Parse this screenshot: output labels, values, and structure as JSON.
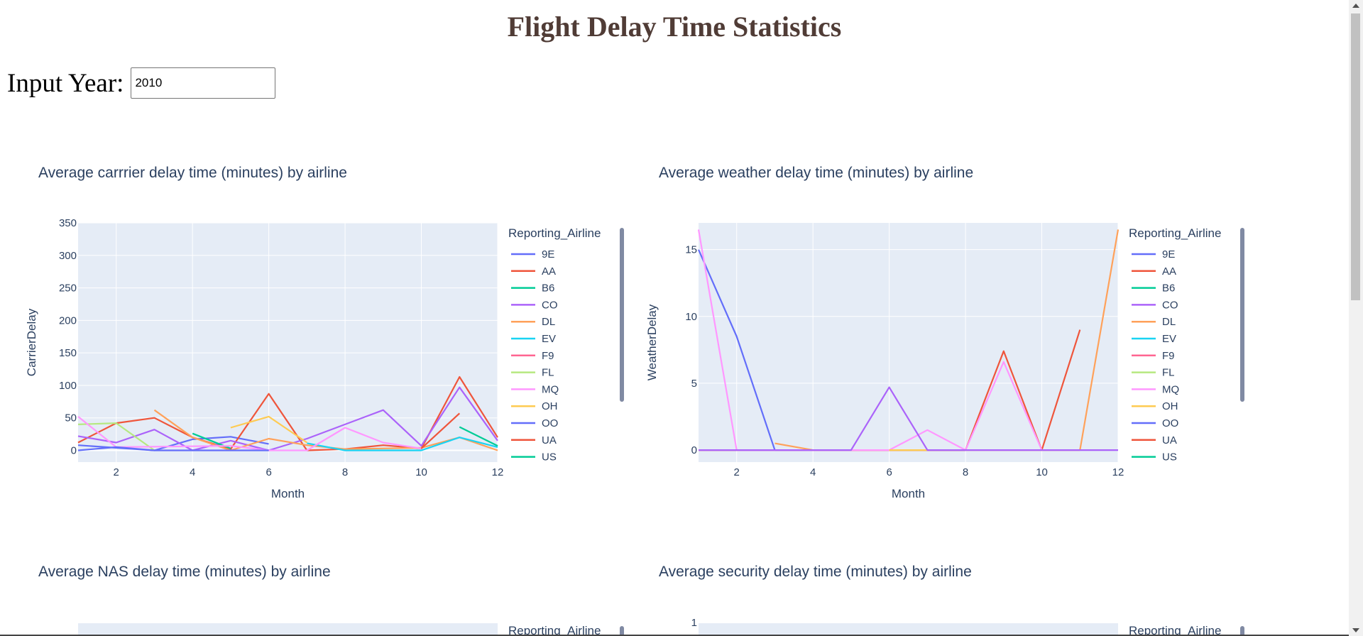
{
  "page": {
    "title": "Flight Delay Time Statistics",
    "year_label": "Input Year:",
    "year_value": "2010"
  },
  "legend_title": "Reporting_Airline",
  "legend_items": [
    {
      "name": "9E",
      "color": "#636efa"
    },
    {
      "name": "AA",
      "color": "#ef553b"
    },
    {
      "name": "B6",
      "color": "#00cc96"
    },
    {
      "name": "CO",
      "color": "#ab63fa"
    },
    {
      "name": "DL",
      "color": "#ffa15a"
    },
    {
      "name": "EV",
      "color": "#19d3f3"
    },
    {
      "name": "F9",
      "color": "#ff6692"
    },
    {
      "name": "FL",
      "color": "#b6e880"
    },
    {
      "name": "MQ",
      "color": "#ff97ff"
    },
    {
      "name": "OH",
      "color": "#fecb52"
    },
    {
      "name": "OO",
      "color": "#636efa"
    },
    {
      "name": "UA",
      "color": "#ef553b"
    },
    {
      "name": "US",
      "color": "#00cc96"
    }
  ],
  "chart_data": [
    {
      "type": "line",
      "title": "Average carrrier delay time (minutes) by airline",
      "xlabel": "Month",
      "ylabel": "CarrierDelay",
      "xlim": [
        1,
        12
      ],
      "ylim": [
        -18,
        350
      ],
      "x_ticks": [
        2,
        4,
        6,
        8,
        10,
        12
      ],
      "y_ticks": [
        0,
        50,
        100,
        150,
        200,
        250,
        300,
        350
      ],
      "series": [
        {
          "name": "9E",
          "x": [
            1,
            2,
            3,
            4,
            5,
            6
          ],
          "y": [
            8,
            4,
            0,
            17,
            21,
            10
          ]
        },
        {
          "name": "AA",
          "x": [
            1,
            2,
            3,
            4,
            5,
            6,
            7,
            8,
            9,
            10,
            11,
            12
          ],
          "y": [
            12,
            42,
            50,
            20,
            2,
            87,
            0,
            2,
            8,
            3,
            113,
            20
          ]
        },
        {
          "name": "CO",
          "x": [
            1,
            2,
            3,
            4,
            5,
            6,
            7,
            9,
            10,
            11,
            12
          ],
          "y": [
            22,
            12,
            32,
            0,
            15,
            0,
            18,
            62,
            7,
            97,
            15
          ]
        },
        {
          "name": "DL",
          "x": [
            3,
            4,
            5,
            6,
            7,
            8,
            10,
            11,
            12
          ],
          "y": [
            62,
            20,
            0,
            18,
            8,
            2,
            4,
            20,
            0
          ]
        },
        {
          "name": "B6",
          "x": [
            4,
            5
          ],
          "y": [
            26,
            3
          ]
        },
        {
          "name": "EV",
          "x": [
            7,
            8,
            10,
            11,
            12
          ],
          "y": [
            11,
            0,
            0,
            20,
            5
          ]
        },
        {
          "name": "FL",
          "x": [
            1,
            2,
            3
          ],
          "y": [
            40,
            42,
            0
          ]
        },
        {
          "name": "MQ",
          "x": [
            1,
            2,
            5,
            6,
            7,
            8,
            9,
            10
          ],
          "y": [
            52,
            5,
            7,
            0,
            0,
            35,
            12,
            3
          ]
        },
        {
          "name": "OH",
          "x": [
            5,
            6,
            7
          ],
          "y": [
            35,
            52,
            12
          ]
        },
        {
          "name": "OO",
          "x": [
            1,
            2,
            3,
            4,
            5,
            6
          ],
          "y": [
            0,
            5,
            0,
            0,
            0,
            0
          ]
        },
        {
          "name": "UA",
          "x": [
            10,
            11
          ],
          "y": [
            3,
            57
          ]
        },
        {
          "name": "US",
          "x": [
            11,
            12
          ],
          "y": [
            36,
            7
          ]
        }
      ]
    },
    {
      "type": "line",
      "title": "Average weather delay time (minutes) by airline",
      "xlabel": "Month",
      "ylabel": "WeatherDelay",
      "xlim": [
        1,
        12
      ],
      "ylim": [
        -0.9,
        17
      ],
      "x_ticks": [
        2,
        4,
        6,
        8,
        10,
        12
      ],
      "y_ticks": [
        0,
        5,
        10,
        15
      ],
      "series": [
        {
          "name": "9E",
          "x": [
            1,
            2,
            3,
            4,
            5,
            6,
            7,
            8
          ],
          "y": [
            15,
            8.5,
            0,
            0,
            0,
            0,
            0,
            0
          ]
        },
        {
          "name": "AA",
          "x": [
            1,
            2,
            3,
            4,
            5,
            6,
            7,
            8,
            9,
            10,
            11
          ],
          "y": [
            0,
            0,
            0,
            0,
            0,
            0,
            0,
            0,
            7.4,
            0,
            9
          ]
        },
        {
          "name": "DL",
          "x": [
            3,
            4,
            5,
            6,
            7,
            8,
            9,
            10,
            11,
            12
          ],
          "y": [
            0.5,
            0,
            0,
            0,
            0,
            0,
            0,
            0,
            0,
            16.5
          ]
        },
        {
          "name": "MQ",
          "x": [
            1,
            2,
            3,
            4,
            5,
            6,
            7,
            8,
            9,
            10
          ],
          "y": [
            16.5,
            0,
            0,
            0,
            0,
            0,
            1.5,
            0,
            6.6,
            0
          ]
        },
        {
          "name": "OH",
          "x": [
            6,
            7
          ],
          "y": [
            0,
            0
          ]
        },
        {
          "name": "CO",
          "x": [
            1,
            2,
            3,
            4,
            5,
            6,
            7,
            8,
            9,
            10,
            11,
            12
          ],
          "y": [
            0,
            0,
            0,
            0,
            0,
            4.7,
            0,
            0,
            0,
            0,
            0,
            0
          ]
        }
      ]
    },
    {
      "type": "line",
      "title": "Average NAS delay time (minutes) by airline",
      "series": []
    },
    {
      "type": "line",
      "title": "Average security delay time (minutes) by airline",
      "y_ticks": [
        1
      ],
      "series": []
    }
  ]
}
